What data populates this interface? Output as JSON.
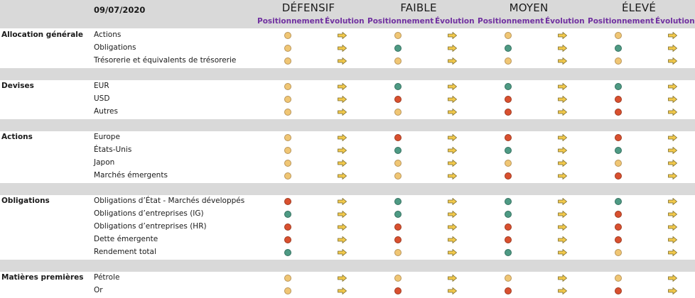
{
  "header": {
    "date": "09/07/2020",
    "profiles": [
      "DÉFENSIF",
      "FAIBLE",
      "MOYEN",
      "ÉLEVÉ"
    ],
    "col_position_label": "Positionnement",
    "col_evolution_label": "Évolution"
  },
  "legend_colors": {
    "neutral": "#f0c674",
    "positive": "#4e9a84",
    "negative": "#d9502f",
    "arrow": "#f2c94c"
  },
  "sections": [
    {
      "category": "Allocation générale",
      "rows": [
        {
          "label": "Actions",
          "positions": [
            "neutral",
            "neutral",
            "neutral",
            "neutral"
          ]
        },
        {
          "label": "Obligations",
          "positions": [
            "neutral",
            "positive",
            "positive",
            "positive"
          ]
        },
        {
          "label": "Trésorerie et équivalents de trésorerie",
          "positions": [
            "neutral",
            "neutral",
            "neutral",
            "neutral"
          ]
        }
      ]
    },
    {
      "category": "Devises",
      "rows": [
        {
          "label": "EUR",
          "positions": [
            "neutral",
            "positive",
            "positive",
            "positive"
          ]
        },
        {
          "label": "USD",
          "positions": [
            "neutral",
            "negative",
            "negative",
            "negative"
          ]
        },
        {
          "label": "Autres",
          "positions": [
            "neutral",
            "neutral",
            "negative",
            "negative"
          ]
        }
      ]
    },
    {
      "category": "Actions",
      "rows": [
        {
          "label": "Europe",
          "positions": [
            "neutral",
            "negative",
            "negative",
            "negative"
          ]
        },
        {
          "label": "États-Unis",
          "positions": [
            "neutral",
            "positive",
            "positive",
            "positive"
          ]
        },
        {
          "label": "Japon",
          "positions": [
            "neutral",
            "neutral",
            "neutral",
            "neutral"
          ]
        },
        {
          "label": "Marchés émergents",
          "positions": [
            "neutral",
            "neutral",
            "negative",
            "negative"
          ]
        }
      ]
    },
    {
      "category": "Obligations",
      "rows": [
        {
          "label": "Obligations d’État - Marchés développés",
          "positions": [
            "negative",
            "positive",
            "positive",
            "positive"
          ]
        },
        {
          "label": "Obligations d’entreprises (IG)",
          "positions": [
            "positive",
            "positive",
            "positive",
            "negative"
          ]
        },
        {
          "label": "Obligations d’entreprises (HR)",
          "positions": [
            "negative",
            "negative",
            "negative",
            "negative"
          ]
        },
        {
          "label": "Dette émergente",
          "positions": [
            "negative",
            "negative",
            "negative",
            "negative"
          ]
        },
        {
          "label": "Rendement total",
          "positions": [
            "positive",
            "neutral",
            "positive",
            "neutral"
          ]
        }
      ]
    },
    {
      "category": "Matières premières",
      "rows": [
        {
          "label": "Pétrole",
          "positions": [
            "neutral",
            "neutral",
            "neutral",
            "neutral"
          ]
        },
        {
          "label": "Or",
          "positions": [
            "neutral",
            "negative",
            "negative",
            "negative"
          ]
        }
      ]
    }
  ]
}
